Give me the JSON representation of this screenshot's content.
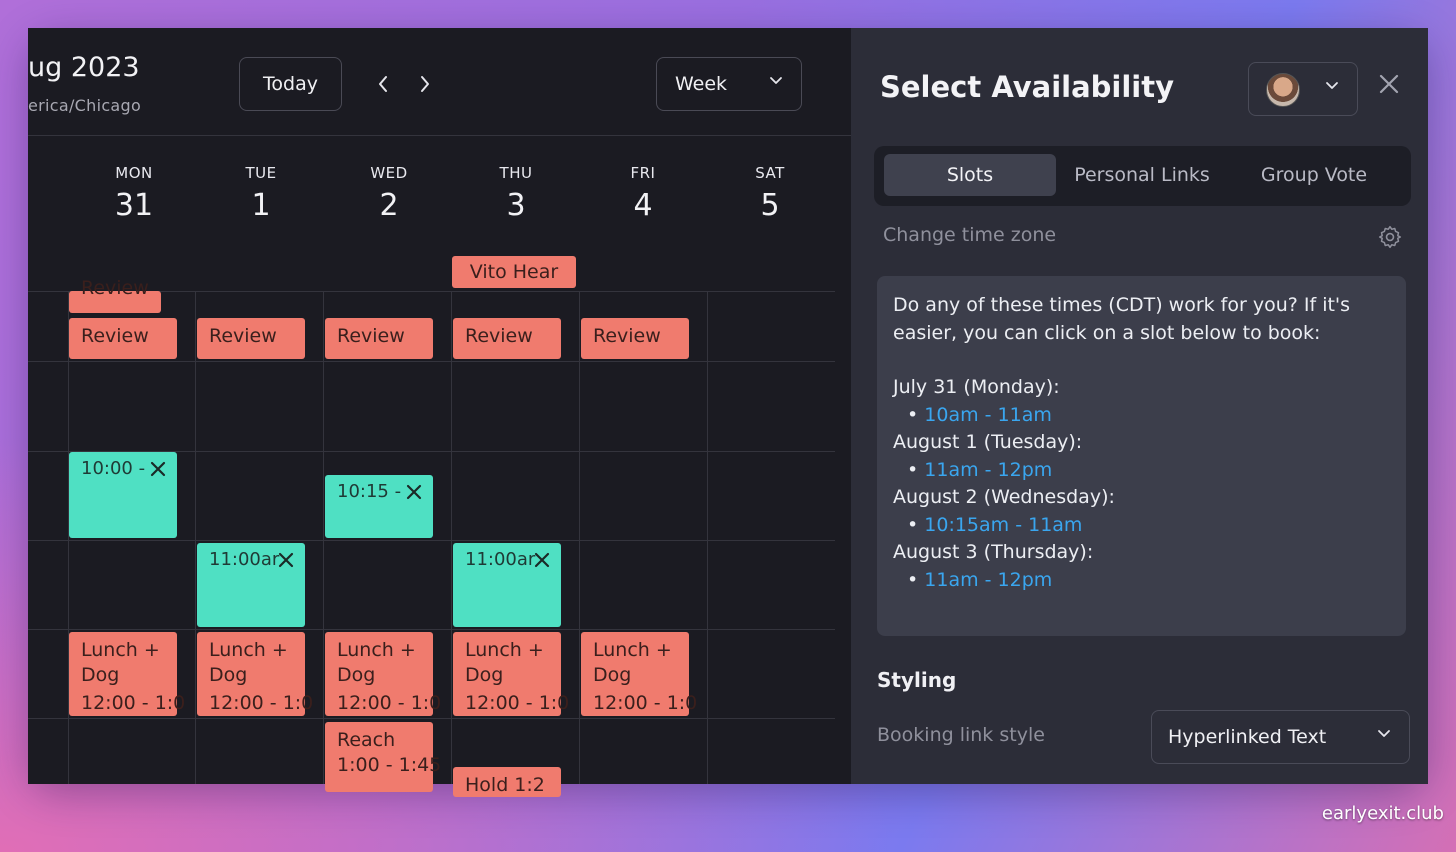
{
  "calendar": {
    "month": "ug 2023",
    "timezone": "erica/Chicago",
    "today_label": "Today",
    "view_label": "Week",
    "days": [
      {
        "name": "MON",
        "num": "31"
      },
      {
        "name": "TUE",
        "num": "1"
      },
      {
        "name": "WED",
        "num": "2"
      },
      {
        "name": "THU",
        "num": "3"
      },
      {
        "name": "FRI",
        "num": "4"
      },
      {
        "name": "SAT",
        "num": "5"
      }
    ],
    "all_day_event": "Vito Hear",
    "events": {
      "review_partial": "Review",
      "review": "Review",
      "slot_mon": "10:00 -",
      "slot_tue": "11:00ar",
      "slot_wed": "10:15 -",
      "slot_thu": "11:00ar",
      "lunch_line1": "Lunch +",
      "lunch_line2": "Dog",
      "lunch_time": "12:00 - 1:0",
      "reach_title": "Reach",
      "reach_time": "1:00 - 1:45",
      "hold_partial": "Hold 1:2"
    }
  },
  "panel": {
    "title": "Select Availability",
    "tabs": [
      "Slots",
      "Personal Links",
      "Group Vote"
    ],
    "change_tz": "Change time zone",
    "message": {
      "intro": "Do any of these times (CDT) work for you? If it's easier, you can click on a slot below to book:",
      "days": [
        {
          "label": "July 31 (Monday):",
          "slot": "10am - 11am"
        },
        {
          "label": "August 1 (Tuesday):",
          "slot": "11am - 12pm"
        },
        {
          "label": "August 2 (Wednesday):",
          "slot": "10:15am - 11am"
        },
        {
          "label": "August 3 (Thursday):",
          "slot": "11am - 12pm"
        }
      ],
      "bullet": "•"
    },
    "styling_heading": "Styling",
    "booking_link_label": "Booking link style",
    "booking_link_value": "Hyperlinked Text"
  },
  "watermark": "earlyexit.club",
  "colors": {
    "event_coral": "#f07b6e",
    "event_mint": "#4fe0c3",
    "link_blue": "#3aa6ef"
  }
}
